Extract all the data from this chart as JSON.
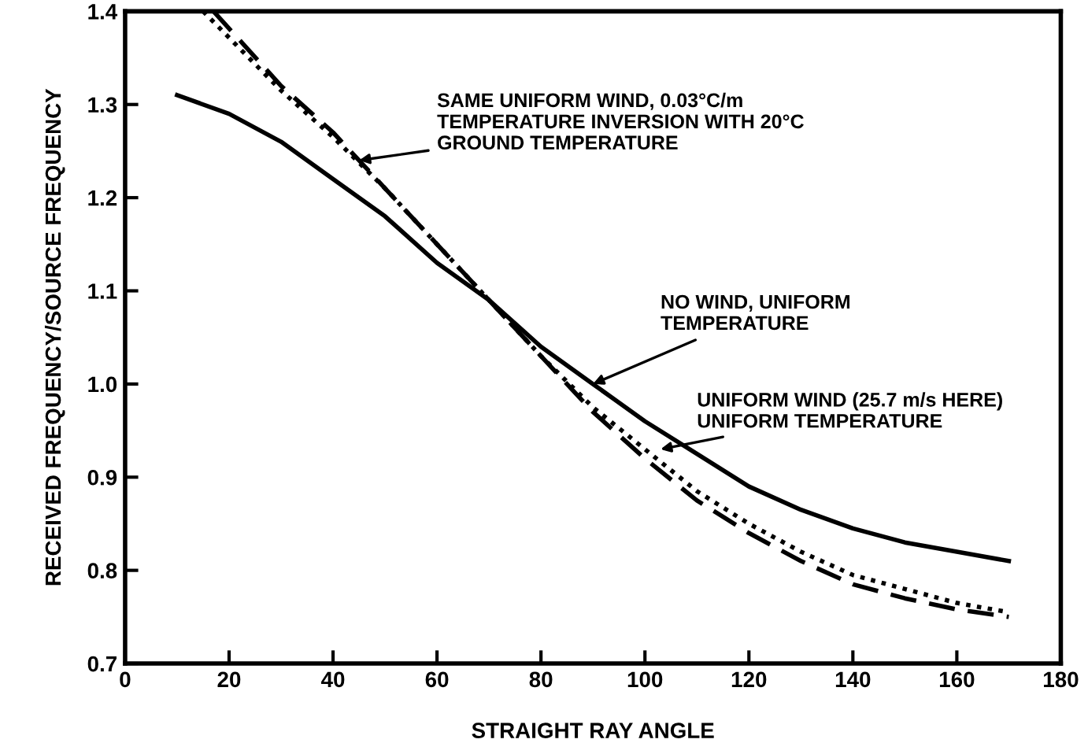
{
  "chart_data": {
    "type": "line",
    "xlabel": "STRAIGHT RAY ANGLE",
    "ylabel": "RECEIVED FREQUENCY/SOURCE FREQUENCY",
    "xlim": [
      0,
      180
    ],
    "ylim": [
      0.7,
      1.4
    ],
    "xticks": [
      0,
      20,
      40,
      60,
      80,
      100,
      120,
      140,
      160,
      180
    ],
    "yticks": [
      {
        "value": 0.7,
        "label": "0.7"
      },
      {
        "value": 0.8,
        "label": "0.8"
      },
      {
        "value": 0.9,
        "label": "0.9"
      },
      {
        "value": 1.0,
        "label": "1.0"
      },
      {
        "value": 1.1,
        "label": "1.1"
      },
      {
        "value": 1.2,
        "label": "1.2"
      },
      {
        "value": 1.3,
        "label": "1.3"
      },
      {
        "value": 1.4,
        "label": "1.4"
      }
    ],
    "grid": false,
    "legend": false,
    "series": [
      {
        "color": "#000000",
        "line_style": "solid",
        "x": [
          10,
          20,
          30,
          40,
          50,
          60,
          70,
          80,
          90,
          100,
          110,
          120,
          130,
          140,
          150,
          160,
          170
        ],
        "values": [
          1.31,
          1.29,
          1.26,
          1.22,
          1.18,
          1.13,
          1.09,
          1.04,
          1.0,
          0.96,
          0.925,
          0.89,
          0.865,
          0.845,
          0.83,
          0.82,
          0.81
        ]
      },
      {
        "color": "#000000",
        "line_style": "dashed",
        "x": [
          17,
          30,
          40,
          50,
          60,
          70,
          80,
          90,
          100,
          110,
          120,
          130,
          140,
          150,
          160,
          170
        ],
        "values": [
          1.4,
          1.32,
          1.27,
          1.21,
          1.15,
          1.09,
          1.03,
          0.97,
          0.92,
          0.875,
          0.84,
          0.81,
          0.785,
          0.77,
          0.758,
          0.75
        ]
      },
      {
        "color": "#000000",
        "line_style": "dotted",
        "x": [
          15,
          30,
          40,
          50,
          60,
          70,
          80,
          90,
          100,
          110,
          120,
          130,
          140,
          150,
          160,
          170
        ],
        "values": [
          1.4,
          1.315,
          1.265,
          1.21,
          1.15,
          1.09,
          1.03,
          0.975,
          0.93,
          0.885,
          0.85,
          0.82,
          0.795,
          0.78,
          0.765,
          0.755
        ]
      }
    ],
    "annotations": [
      {
        "text": "SAME UNIFORM WIND, 0.03°C/m\nTEMPERATURE INVERSION WITH 20°C\nGROUND TEMPERATURE",
        "x": 45,
        "y": 1.24
      },
      {
        "text": "NO WIND, UNIFORM\nTEMPERATURE",
        "x": 90,
        "y": 1.0
      },
      {
        "text": "UNIFORM WIND (25.7 m/s HERE)\nUNIFORM TEMPERATURE",
        "x": 103,
        "y": 0.93
      }
    ]
  }
}
